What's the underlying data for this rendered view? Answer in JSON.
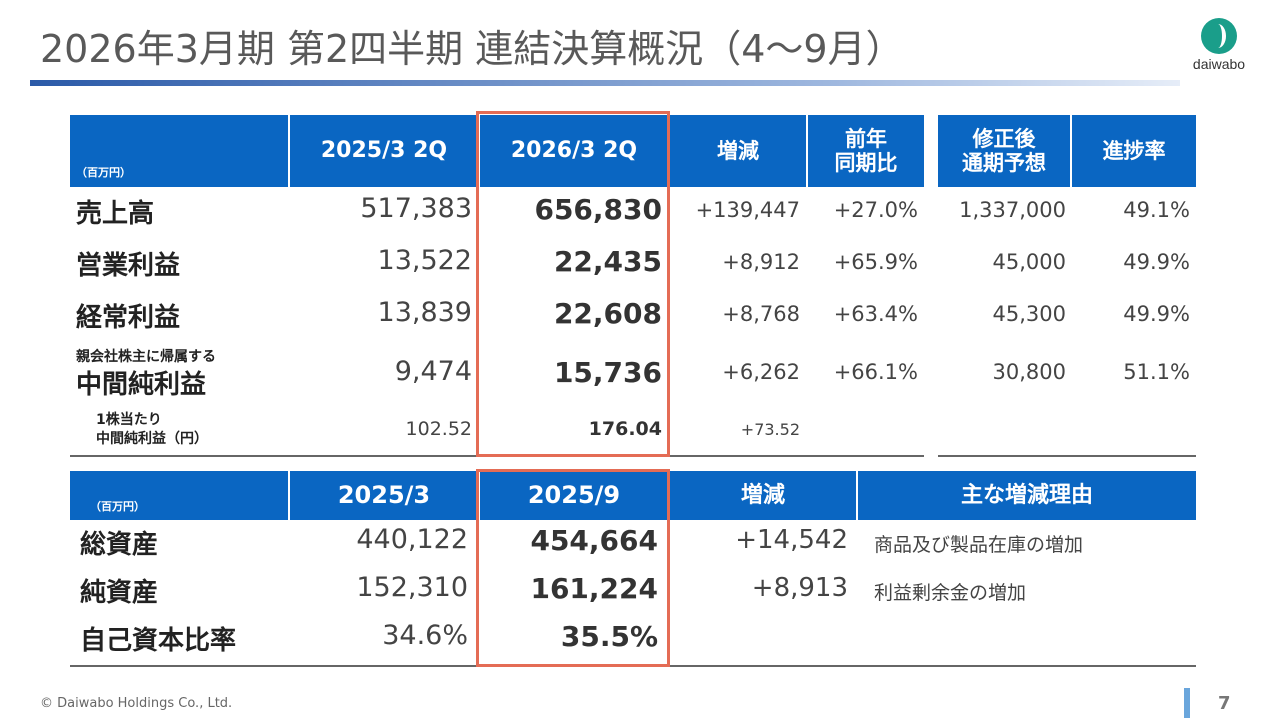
{
  "title": "2026年3月期 第2四半期 連結決算概況（4～9月）",
  "logo": {
    "text": "daiwabo",
    "icon": "daiwabo-logo-icon",
    "color": "#1a9e8a"
  },
  "colors": {
    "header_bg": "#0a66c2",
    "highlight": "#e46c55"
  },
  "income": {
    "unit": "（百万円）",
    "headers": [
      "2025/3 2Q",
      "2026/3 2Q",
      "増減",
      "前年\n同期比",
      "修正後\n通期予想",
      "進捗率"
    ],
    "rows": [
      {
        "label": "売上高",
        "prev": "517,383",
        "curr": "656,830",
        "diff": "+139,447",
        "yoy": "+27.0%",
        "forecast": "1,337,000",
        "progress": "49.1%"
      },
      {
        "label": "営業利益",
        "prev": "13,522",
        "curr": "22,435",
        "diff": "+8,912",
        "yoy": "+65.9%",
        "forecast": "45,000",
        "progress": "49.9%"
      },
      {
        "label": "経常利益",
        "prev": "13,839",
        "curr": "22,608",
        "diff": "+8,768",
        "yoy": "+63.4%",
        "forecast": "45,300",
        "progress": "49.9%"
      },
      {
        "label_small": "親会社株主に帰属する",
        "label": "中間純利益",
        "prev": "9,474",
        "curr": "15,736",
        "diff": "+6,262",
        "yoy": "+66.1%",
        "forecast": "30,800",
        "progress": "51.1%"
      },
      {
        "label_line1": "1株当たり",
        "label_line2": "中間純利益（円）",
        "prev": "102.52",
        "curr": "176.04",
        "diff": "+73.52"
      }
    ]
  },
  "balance": {
    "unit": "（百万円）",
    "headers": [
      "2025/3",
      "2025/9",
      "増減",
      "主な増減理由"
    ],
    "rows": [
      {
        "label": "総資産",
        "prev": "440,122",
        "curr": "454,664",
        "diff": "+14,542",
        "reason": "商品及び製品在庫の増加"
      },
      {
        "label": "純資産",
        "prev": "152,310",
        "curr": "161,224",
        "diff": "+8,913",
        "reason": "利益剰余金の増加"
      },
      {
        "label": "自己資本比率",
        "prev": "34.6%",
        "curr": "35.5%"
      }
    ]
  },
  "footer": {
    "copyright": "© Daiwabo Holdings Co., Ltd.",
    "page": "7"
  }
}
